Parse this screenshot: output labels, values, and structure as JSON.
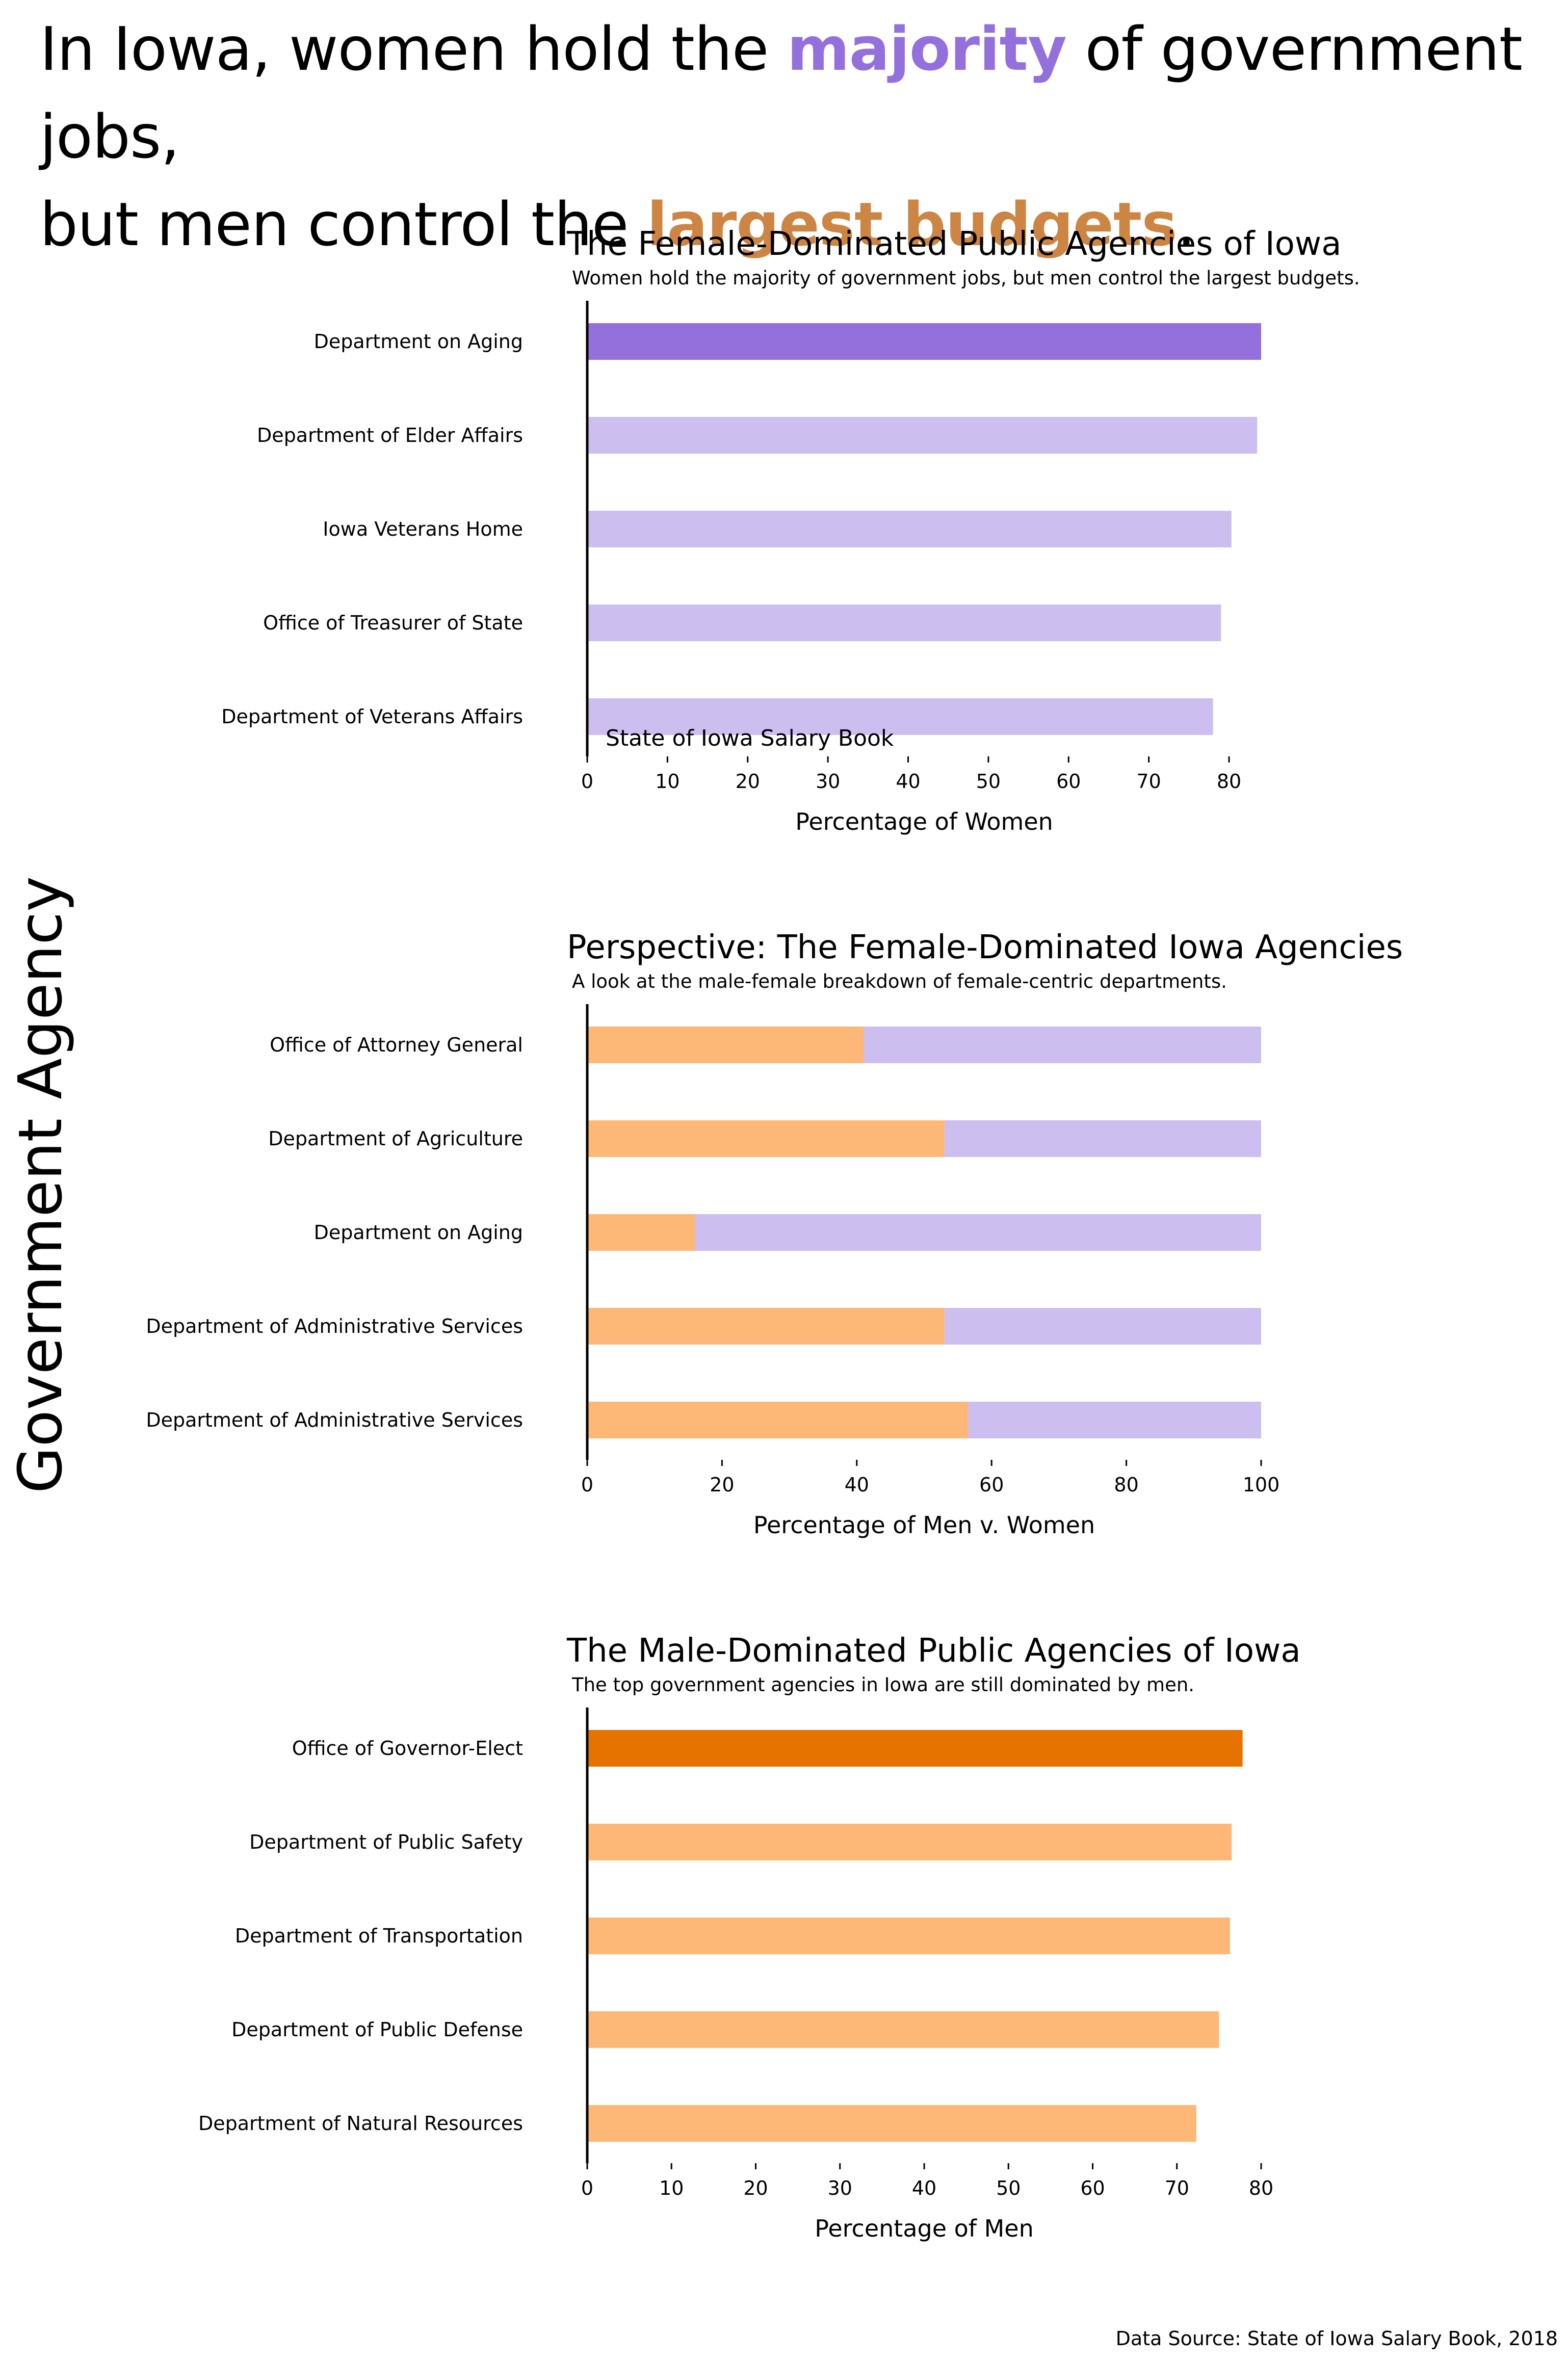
{
  "headline": {
    "line1_before": "In Iowa, women hold the ",
    "line1_highlight": "majority",
    "line1_after": " of government jobs,",
    "line2_before": "but men control the ",
    "line2_highlight": "largest budgets",
    "line2_after": "."
  },
  "y_axis_label": "Government Agency",
  "source_note": "Data Source: State of Iowa Salary Book, 2018",
  "colors": {
    "majority_highlight": "#9370DB",
    "budgets_highlight": "#CD8543",
    "female_accent": "#9370DB",
    "female_light": "#CDBEF0",
    "male_accent": "#E67300",
    "male_light": "#FDB878"
  },
  "chart_data": [
    {
      "type": "bar",
      "orientation": "horizontal",
      "title": "The Female-Dominated Public Agencies of Iowa",
      "subtitle": "Women hold the majority of government jobs, but men control the largest budgets.",
      "annotation": "State of Iowa Salary Book",
      "xlabel": "Percentage of Women",
      "ylabel": "",
      "xlim": [
        0,
        84
      ],
      "xticks": [
        0,
        10,
        20,
        30,
        40,
        50,
        60,
        70,
        80
      ],
      "grid": false,
      "categories": [
        "Department on Aging",
        "Department of Elder Affairs",
        "Iowa Veterans Home",
        "Office of Treasurer of State",
        "Department of Veterans Affairs"
      ],
      "values": [
        84,
        83.5,
        80.3,
        79,
        78
      ],
      "highlight_index": 0
    },
    {
      "type": "bar",
      "orientation": "horizontal",
      "stacked": true,
      "title": "Perspective: The Female-Dominated Iowa Agencies",
      "subtitle": "A look at the male-female breakdown of female-centric departments.",
      "xlabel": "Percentage of Men v. Women",
      "ylabel": "",
      "xlim": [
        0,
        100
      ],
      "xticks": [
        0,
        20,
        40,
        60,
        80,
        100
      ],
      "grid": false,
      "categories": [
        "Office of Attorney General",
        "Department of Agriculture",
        "Department on Aging",
        "Department of Administrative Services",
        "Department of Administrative Services"
      ],
      "series": [
        {
          "values": [
            41,
            53,
            16,
            53,
            56.5
          ]
        },
        {
          "values": [
            59,
            47,
            84,
            47,
            43.5
          ]
        }
      ]
    },
    {
      "type": "bar",
      "orientation": "horizontal",
      "title": "The Male-Dominated Public Agencies of Iowa",
      "subtitle": "The top government agencies in Iowa are still dominated by men.",
      "xlabel": "Percentage of Men",
      "ylabel": "",
      "xlim": [
        0,
        80
      ],
      "xticks": [
        0,
        10,
        20,
        30,
        40,
        50,
        60,
        70,
        80
      ],
      "grid": false,
      "categories": [
        "Office of Governor-Elect",
        "Department of Public Safety",
        "Department of Transportation",
        "Department of Public Defense",
        "Department of Natural Resources"
      ],
      "values": [
        77.8,
        76.5,
        76.3,
        75,
        72.3
      ],
      "highlight_index": 0
    }
  ]
}
